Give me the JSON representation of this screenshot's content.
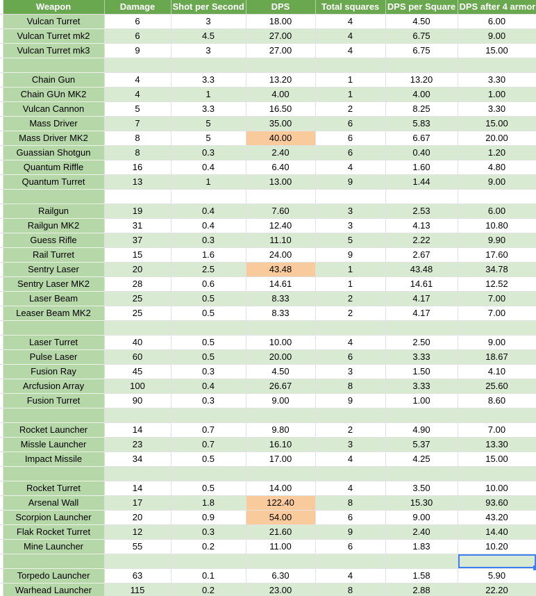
{
  "colors": {
    "header_bg": "#6aa84f",
    "header_text": "#ffffff",
    "weapon_col_bg": "#b6d7a8",
    "band_bg": "#d9ead3",
    "row_bg": "#ffffff",
    "highlight_bg": "#f9cb9c",
    "selection_border": "#3d7ef0",
    "gridline": "#e1e1e1",
    "text": "#000000"
  },
  "table": {
    "columns": [
      "Weapon",
      "Damage",
      "Shot per Second",
      "DPS",
      "Total squares",
      "DPS per Square",
      "DPS after 4 armor"
    ],
    "rows": [
      {
        "cells": [
          "Vulcan Turret",
          "6",
          "3",
          "18.00",
          "4",
          "4.50",
          "6.00"
        ]
      },
      {
        "cells": [
          "Vulcan Turret mk2",
          "6",
          "4.5",
          "27.00",
          "4",
          "6.75",
          "9.00"
        ]
      },
      {
        "cells": [
          "Vulcan Turret mk3",
          "9",
          "3",
          "27.00",
          "4",
          "6.75",
          "15.00"
        ]
      },
      {
        "cells": [
          "",
          "",
          "",
          "",
          "",
          "",
          ""
        ]
      },
      {
        "cells": [
          "Chain Gun",
          "4",
          "3.3",
          "13.20",
          "1",
          "13.20",
          "3.30"
        ]
      },
      {
        "cells": [
          "Chain GUn MK2",
          "4",
          "1",
          "4.00",
          "1",
          "4.00",
          "1.00"
        ]
      },
      {
        "cells": [
          "Vulcan Cannon",
          "5",
          "3.3",
          "16.50",
          "2",
          "8.25",
          "3.30"
        ]
      },
      {
        "cells": [
          "Mass Driver",
          "7",
          "5",
          "35.00",
          "6",
          "5.83",
          "15.00"
        ]
      },
      {
        "cells": [
          "Mass Driver MK2",
          "8",
          "5",
          "40.00",
          "6",
          "6.67",
          "20.00"
        ],
        "dps_highlight": true
      },
      {
        "cells": [
          "Guassian Shotgun",
          "8",
          "0.3",
          "2.40",
          "6",
          "0.40",
          "1.20"
        ]
      },
      {
        "cells": [
          "Quantum Riffle",
          "16",
          "0.4",
          "6.40",
          "4",
          "1.60",
          "4.80"
        ]
      },
      {
        "cells": [
          "Quantum Turret",
          "13",
          "1",
          "13.00",
          "9",
          "1.44",
          "9.00"
        ]
      },
      {
        "cells": [
          "",
          "",
          "",
          "",
          "",
          "",
          ""
        ]
      },
      {
        "cells": [
          "Railgun",
          "19",
          "0.4",
          "7.60",
          "3",
          "2.53",
          "6.00"
        ]
      },
      {
        "cells": [
          "Railgun MK2",
          "31",
          "0.4",
          "12.40",
          "3",
          "4.13",
          "10.80"
        ]
      },
      {
        "cells": [
          "Guess Rifle",
          "37",
          "0.3",
          "11.10",
          "5",
          "2.22",
          "9.90"
        ]
      },
      {
        "cells": [
          "Rail Turret",
          "15",
          "1.6",
          "24.00",
          "9",
          "2.67",
          "17.60"
        ]
      },
      {
        "cells": [
          "Sentry Laser",
          "20",
          "2.5",
          "43.48",
          "1",
          "43.48",
          "34.78"
        ],
        "dps_highlight": true
      },
      {
        "cells": [
          "Sentry Laser MK2",
          "28",
          "0.6",
          "14.61",
          "1",
          "14.61",
          "12.52"
        ]
      },
      {
        "cells": [
          "Laser Beam",
          "25",
          "0.5",
          "8.33",
          "2",
          "4.17",
          "7.00"
        ]
      },
      {
        "cells": [
          "Leaser Beam MK2",
          "25",
          "0.5",
          "8.33",
          "2",
          "4.17",
          "7.00"
        ]
      },
      {
        "cells": [
          "",
          "",
          "",
          "",
          "",
          "",
          ""
        ]
      },
      {
        "cells": [
          "Laser Turret",
          "40",
          "0.5",
          "10.00",
          "4",
          "2.50",
          "9.00"
        ]
      },
      {
        "cells": [
          "Pulse Laser",
          "60",
          "0.5",
          "20.00",
          "6",
          "3.33",
          "18.67"
        ]
      },
      {
        "cells": [
          "Fusion Ray",
          "45",
          "0.3",
          "4.50",
          "3",
          "1.50",
          "4.10"
        ]
      },
      {
        "cells": [
          "Arcfusion Array",
          "100",
          "0.4",
          "26.67",
          "8",
          "3.33",
          "25.60"
        ]
      },
      {
        "cells": [
          "Fusion Turret",
          "90",
          "0.3",
          "9.00",
          "9",
          "1.00",
          "8.60"
        ]
      },
      {
        "cells": [
          "",
          "",
          "",
          "",
          "",
          "",
          ""
        ]
      },
      {
        "cells": [
          "Rocket Launcher",
          "14",
          "0.7",
          "9.80",
          "2",
          "4.90",
          "7.00"
        ]
      },
      {
        "cells": [
          "Missle Launcher",
          "23",
          "0.7",
          "16.10",
          "3",
          "5.37",
          "13.30"
        ]
      },
      {
        "cells": [
          "Impact Missile",
          "34",
          "0.5",
          "17.00",
          "4",
          "4.25",
          "15.00"
        ]
      },
      {
        "cells": [
          "",
          "",
          "",
          "",
          "",
          "",
          ""
        ]
      },
      {
        "cells": [
          "Rocket Turret",
          "14",
          "0.5",
          "14.00",
          "4",
          "3.50",
          "10.00"
        ]
      },
      {
        "cells": [
          "Arsenal Wall",
          "17",
          "1.8",
          "122.40",
          "8",
          "15.30",
          "93.60"
        ],
        "dps_highlight": true
      },
      {
        "cells": [
          "Scorpion Launcher",
          "20",
          "0.9",
          "54.00",
          "6",
          "9.00",
          "43.20"
        ],
        "dps_highlight": true
      },
      {
        "cells": [
          "Flak Rocket Turret",
          "12",
          "0.3",
          "21.60",
          "9",
          "2.40",
          "14.40"
        ]
      },
      {
        "cells": [
          "Mine Launcher",
          "55",
          "0.2",
          "11.00",
          "6",
          "1.83",
          "10.20"
        ]
      },
      {
        "cells": [
          "",
          "",
          "",
          "",
          "",
          "",
          ""
        ]
      },
      {
        "cells": [
          "Torpedo Launcher",
          "63",
          "0.1",
          "6.30",
          "4",
          "1.58",
          "5.90"
        ]
      },
      {
        "cells": [
          "Warhead Launcher",
          "115",
          "0.2",
          "23.00",
          "8",
          "2.88",
          "22.20"
        ]
      }
    ]
  },
  "selection": {
    "row": 37,
    "column": 6,
    "column_name": "DPS after 4 armor"
  }
}
